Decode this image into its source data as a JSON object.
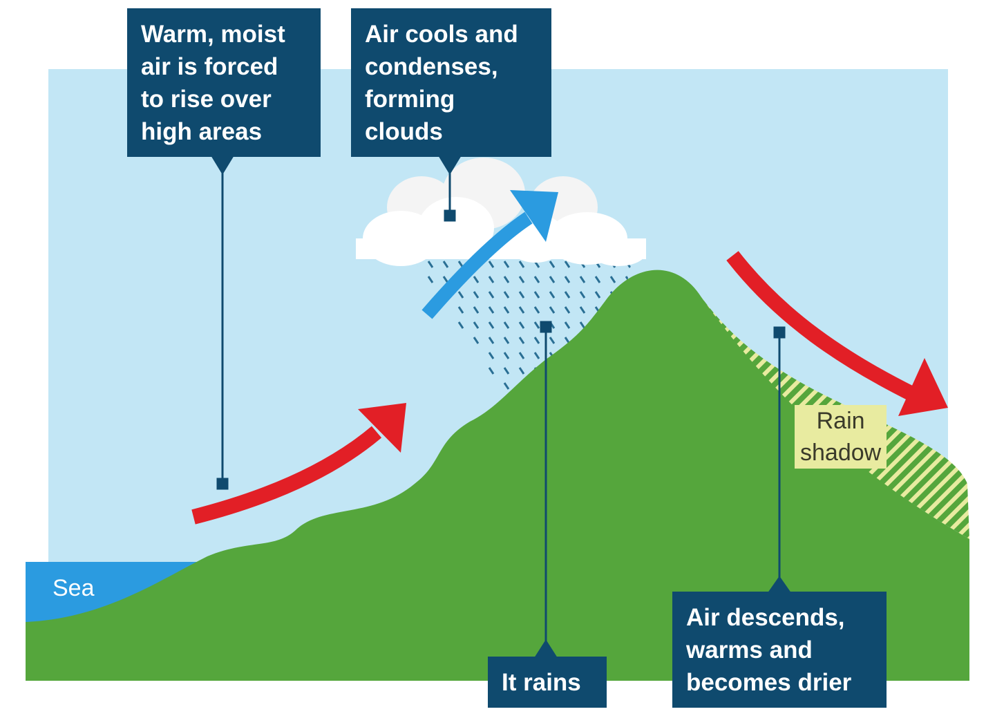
{
  "labels": {
    "rise": "Warm, moist\nair is forced\nto rise over\nhigh areas",
    "clouds": "Air cools and\ncondenses,\nforming\nclouds",
    "rains": "It rains",
    "descends": "Air descends,\nwarms and\nbecomes drier",
    "sea": "Sea",
    "rain_shadow": "Rain\nshadow"
  },
  "colors": {
    "sky": "#c2e6f5",
    "sea": "#2b9be0",
    "land": "#55a63c",
    "rain_shadow_hatch": "#e8eba0",
    "label_box": "#0f4a6e",
    "warm_air_arrow": "#e21f26",
    "rising_air_arrow": "#2b9be0",
    "cloud": "#ffffff"
  }
}
